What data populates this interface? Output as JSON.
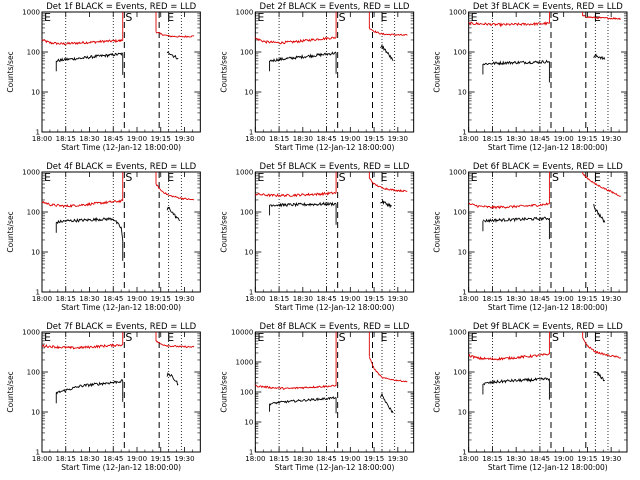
{
  "chart_data": {
    "type": "line",
    "xlabel": "Start Time (12-Jan-12 18:00:00)",
    "ylabel": "Counts/sec",
    "x_range_minutes": [
      0,
      100
    ],
    "x_ticks": [
      {
        "t": 0,
        "label": "18:00"
      },
      {
        "t": 15,
        "label": "18:15"
      },
      {
        "t": 30,
        "label": "18:30"
      },
      {
        "t": 45,
        "label": "18:45"
      },
      {
        "t": 60,
        "label": "19:00"
      },
      {
        "t": 75,
        "label": "19:15"
      },
      {
        "t": 90,
        "label": "19:30"
      }
    ],
    "y_scale": "log",
    "series_colors": {
      "events": "#000000",
      "lld": "#dd0000"
    },
    "markers": {
      "start_label": "S",
      "end_label": "E",
      "edge_label": "E"
    },
    "panels": [
      {
        "title": "Det 1f BLACK = Events, RED = LLD",
        "ylim": [
          1,
          1000
        ],
        "y_ticks": [
          {
            "v": 1,
            "label": "1"
          },
          {
            "v": 10,
            "label": "10"
          },
          {
            "v": 100,
            "label": "100"
          },
          {
            "v": 1000,
            "label": "1000"
          }
        ],
        "dotted_t": [
          15,
          45,
          80,
          88
        ],
        "dashed_t": [
          52,
          74
        ],
        "red_pre": {
          "x": [
            0,
            5,
            12,
            20,
            30,
            40,
            48,
            51
          ],
          "y": [
            200,
            170,
            160,
            165,
            175,
            185,
            190,
            195
          ]
        },
        "red_post": {
          "x": [
            72,
            75,
            80,
            88,
            96
          ],
          "y": [
            320,
            280,
            250,
            240,
            250
          ]
        },
        "black_pre": {
          "x": [
            9,
            15,
            25,
            35,
            45,
            51
          ],
          "y": [
            60,
            65,
            70,
            78,
            85,
            90
          ]
        },
        "black_post": {
          "x": [
            79,
            80,
            83,
            86
          ],
          "y": [
            90,
            100,
            80,
            70
          ]
        }
      },
      {
        "title": "Det 2f BLACK = Events, RED = LLD",
        "ylim": [
          1,
          1000
        ],
        "y_ticks": [
          {
            "v": 1,
            "label": "1"
          },
          {
            "v": 10,
            "label": "10"
          },
          {
            "v": 100,
            "label": "100"
          },
          {
            "v": 1000,
            "label": "1000"
          }
        ],
        "dotted_t": [
          15,
          45,
          80,
          88
        ],
        "dashed_t": [
          52,
          74
        ],
        "red_pre": {
          "x": [
            0,
            6,
            15,
            25,
            35,
            45,
            51
          ],
          "y": [
            220,
            180,
            170,
            180,
            200,
            220,
            230
          ]
        },
        "red_post": {
          "x": [
            72,
            75,
            80,
            88,
            96
          ],
          "y": [
            400,
            330,
            280,
            270,
            260
          ]
        },
        "black_pre": {
          "x": [
            9,
            15,
            25,
            35,
            45,
            51
          ],
          "y": [
            60,
            65,
            72,
            80,
            88,
            95
          ]
        },
        "black_post": {
          "x": [
            79,
            80,
            83,
            87
          ],
          "y": [
            120,
            140,
            100,
            60
          ]
        }
      },
      {
        "title": "Det 3f BLACK = Events, RED = LLD",
        "ylim": [
          1,
          1000
        ],
        "y_ticks": [
          {
            "v": 1,
            "label": "1"
          },
          {
            "v": 10,
            "label": "10"
          },
          {
            "v": 100,
            "label": "100"
          },
          {
            "v": 1000,
            "label": "1000"
          }
        ],
        "dotted_t": [
          15,
          45,
          80,
          88
        ],
        "dashed_t": [
          52,
          74
        ],
        "red_pre": {
          "x": [
            0,
            10,
            20,
            30,
            40,
            51
          ],
          "y": [
            520,
            500,
            480,
            490,
            500,
            520
          ]
        },
        "red_post": {
          "x": [
            72,
            75,
            80,
            88,
            96
          ],
          "y": [
            800,
            750,
            720,
            700,
            680
          ]
        },
        "black_pre": {
          "x": [
            9,
            15,
            25,
            35,
            45,
            51
          ],
          "y": [
            50,
            52,
            54,
            55,
            56,
            58
          ]
        },
        "black_post": {
          "x": [
            79,
            80,
            83,
            86
          ],
          "y": [
            70,
            80,
            75,
            65
          ]
        }
      },
      {
        "title": "Det 4f BLACK = Events, RED = LLD",
        "ylim": [
          1,
          1000
        ],
        "y_ticks": [
          {
            "v": 1,
            "label": "1"
          },
          {
            "v": 10,
            "label": "10"
          },
          {
            "v": 100,
            "label": "100"
          },
          {
            "v": 1000,
            "label": "1000"
          }
        ],
        "dotted_t": [
          15,
          45,
          80,
          88
        ],
        "dashed_t": [
          52,
          74
        ],
        "red_pre": {
          "x": [
            0,
            6,
            15,
            25,
            35,
            45,
            51
          ],
          "y": [
            180,
            150,
            140,
            150,
            165,
            180,
            190
          ]
        },
        "red_post": {
          "x": [
            72,
            75,
            80,
            88,
            96
          ],
          "y": [
            500,
            350,
            260,
            220,
            200
          ]
        },
        "black_pre": {
          "x": [
            9,
            15,
            25,
            35,
            45,
            50,
            51
          ],
          "y": [
            55,
            60,
            62,
            65,
            68,
            40,
            20
          ]
        },
        "black_post": {
          "x": [
            79,
            80,
            83,
            87
          ],
          "y": [
            110,
            130,
            90,
            60
          ]
        }
      },
      {
        "title": "Det 5f BLACK = Events, RED = LLD",
        "ylim": [
          1,
          1000
        ],
        "y_ticks": [
          {
            "v": 1,
            "label": "1"
          },
          {
            "v": 10,
            "label": "10"
          },
          {
            "v": 100,
            "label": "100"
          },
          {
            "v": 1000,
            "label": "1000"
          }
        ],
        "dotted_t": [
          15,
          45,
          80,
          88
        ],
        "dashed_t": [
          52,
          74
        ],
        "red_pre": {
          "x": [
            0,
            10,
            20,
            30,
            40,
            51
          ],
          "y": [
            280,
            260,
            260,
            270,
            280,
            300
          ]
        },
        "red_post": {
          "x": [
            72,
            75,
            80,
            88,
            96
          ],
          "y": [
            700,
            500,
            400,
            350,
            330
          ]
        },
        "black_pre": {
          "x": [
            9,
            15,
            25,
            35,
            45,
            51
          ],
          "y": [
            150,
            150,
            152,
            155,
            158,
            160
          ]
        },
        "black_post": {
          "x": [
            79,
            80,
            83,
            86
          ],
          "y": [
            170,
            180,
            160,
            140
          ]
        }
      },
      {
        "title": "Det 6f BLACK = Events, RED = LLD",
        "ylim": [
          1,
          1000
        ],
        "y_ticks": [
          {
            "v": 1,
            "label": "1"
          },
          {
            "v": 10,
            "label": "10"
          },
          {
            "v": 100,
            "label": "100"
          },
          {
            "v": 1000,
            "label": "1000"
          }
        ],
        "dotted_t": [
          15,
          45,
          80,
          88
        ],
        "dashed_t": [
          52,
          74
        ],
        "red_pre": {
          "x": [
            0,
            6,
            15,
            25,
            35,
            45,
            51
          ],
          "y": [
            160,
            140,
            130,
            135,
            140,
            150,
            160
          ]
        },
        "red_post": {
          "x": [
            72,
            75,
            80,
            88,
            96
          ],
          "y": [
            900,
            700,
            500,
            350,
            250
          ]
        },
        "black_pre": {
          "x": [
            9,
            15,
            25,
            35,
            45,
            51
          ],
          "y": [
            60,
            62,
            64,
            66,
            68,
            70
          ]
        },
        "black_post": {
          "x": [
            79,
            80,
            83,
            86
          ],
          "y": [
            150,
            120,
            80,
            55
          ]
        }
      },
      {
        "title": "Det 7f BLACK = Events, RED = LLD",
        "ylim": [
          1,
          1000
        ],
        "y_ticks": [
          {
            "v": 1,
            "label": "1"
          },
          {
            "v": 10,
            "label": "10"
          },
          {
            "v": 100,
            "label": "100"
          },
          {
            "v": 1000,
            "label": "1000"
          }
        ],
        "dotted_t": [
          15,
          45,
          80,
          88
        ],
        "dashed_t": [
          52,
          74
        ],
        "red_pre": {
          "x": [
            0,
            10,
            20,
            30,
            40,
            51
          ],
          "y": [
            450,
            420,
            400,
            420,
            450,
            480
          ]
        },
        "red_post": {
          "x": [
            72,
            75,
            80,
            88,
            96
          ],
          "y": [
            600,
            500,
            450,
            430,
            420
          ]
        },
        "black_pre": {
          "x": [
            9,
            15,
            25,
            35,
            45,
            51
          ],
          "y": [
            30,
            35,
            45,
            50,
            55,
            60
          ]
        },
        "black_post": {
          "x": [
            79,
            80,
            83,
            86
          ],
          "y": [
            80,
            90,
            70,
            50
          ]
        }
      },
      {
        "title": "Det 8f BLACK = Events, RED = LLD",
        "ylim": [
          1,
          10000
        ],
        "y_ticks": [
          {
            "v": 1,
            "label": "1"
          },
          {
            "v": 10,
            "label": "10"
          },
          {
            "v": 100,
            "label": "100"
          },
          {
            "v": 1000,
            "label": "1000"
          },
          {
            "v": 10000,
            "label": "10000"
          }
        ],
        "dotted_t": [
          15,
          45,
          80,
          88
        ],
        "dashed_t": [
          52,
          74
        ],
        "red_pre": {
          "x": [
            0,
            10,
            20,
            30,
            40,
            51
          ],
          "y": [
            160,
            140,
            130,
            140,
            150,
            160
          ]
        },
        "red_post": {
          "x": [
            72,
            75,
            80,
            88,
            96
          ],
          "y": [
            1500,
            600,
            300,
            250,
            220
          ]
        },
        "black_pre": {
          "x": [
            9,
            15,
            25,
            35,
            45,
            51
          ],
          "y": [
            40,
            45,
            50,
            55,
            60,
            65
          ]
        },
        "black_post": {
          "x": [
            79,
            80,
            83,
            87
          ],
          "y": [
            60,
            80,
            40,
            20
          ]
        }
      },
      {
        "title": "Det 9f BLACK = Events, RED = LLD",
        "ylim": [
          1,
          1000
        ],
        "y_ticks": [
          {
            "v": 1,
            "label": "1"
          },
          {
            "v": 10,
            "label": "10"
          },
          {
            "v": 100,
            "label": "100"
          },
          {
            "v": 1000,
            "label": "1000"
          }
        ],
        "dotted_t": [
          15,
          45,
          80,
          88
        ],
        "dashed_t": [
          52,
          74
        ],
        "red_pre": {
          "x": [
            0,
            6,
            15,
            25,
            35,
            45,
            51
          ],
          "y": [
            260,
            220,
            210,
            220,
            240,
            260,
            280
          ]
        },
        "red_post": {
          "x": [
            72,
            75,
            80,
            88,
            96
          ],
          "y": [
            700,
            450,
            320,
            260,
            230
          ]
        },
        "black_pre": {
          "x": [
            9,
            15,
            25,
            35,
            45,
            51
          ],
          "y": [
            50,
            55,
            60,
            62,
            65,
            68
          ]
        },
        "black_post": {
          "x": [
            79,
            80,
            83,
            86
          ],
          "y": [
            90,
            100,
            80,
            60
          ]
        }
      }
    ]
  }
}
